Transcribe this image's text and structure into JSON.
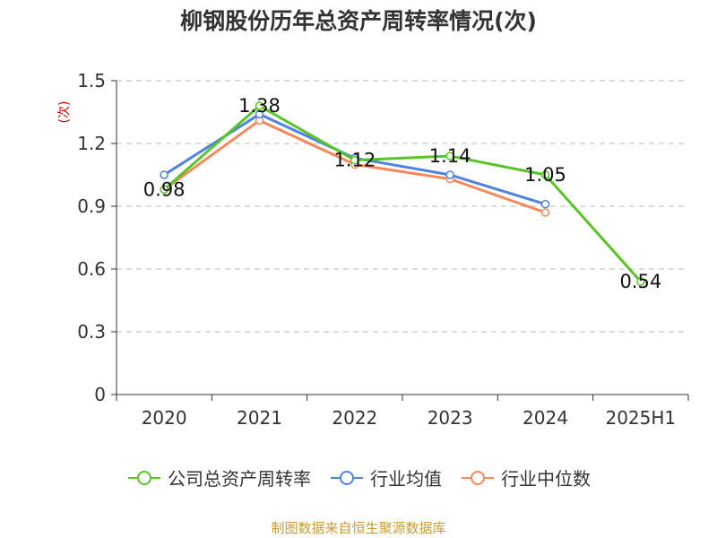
{
  "title": "柳钢股份历年总资产周转率情况(次)",
  "source": "制图数据来自恒生聚源数据库",
  "chart_data": {
    "type": "line",
    "title": "柳钢股份历年总资产周转率情况(次)",
    "ylabel": "(次)",
    "xlabel": "",
    "ylim": [
      0,
      1.5
    ],
    "yticks": [
      "0",
      "0.3",
      "0.6",
      "0.9",
      "1.2",
      "1.5"
    ],
    "grid": true,
    "legend_position": "bottom",
    "categories": [
      "2020",
      "2021",
      "2022",
      "2023",
      "2024",
      "2025H1"
    ],
    "series": [
      {
        "name": "公司总资产周转率",
        "color": "#5ac426",
        "values": [
          0.98,
          1.38,
          1.12,
          1.14,
          1.05,
          0.54
        ],
        "labels": [
          "0.98",
          "1.38",
          "1.12",
          "1.14",
          "1.05",
          "0.54"
        ]
      },
      {
        "name": "行业均值",
        "color": "#4e84e0",
        "values": [
          1.05,
          1.34,
          1.13,
          1.05,
          0.91,
          null
        ]
      },
      {
        "name": "行业中位数",
        "color": "#f5895a",
        "values": [
          0.98,
          1.31,
          1.1,
          1.03,
          0.87,
          null
        ]
      }
    ]
  }
}
